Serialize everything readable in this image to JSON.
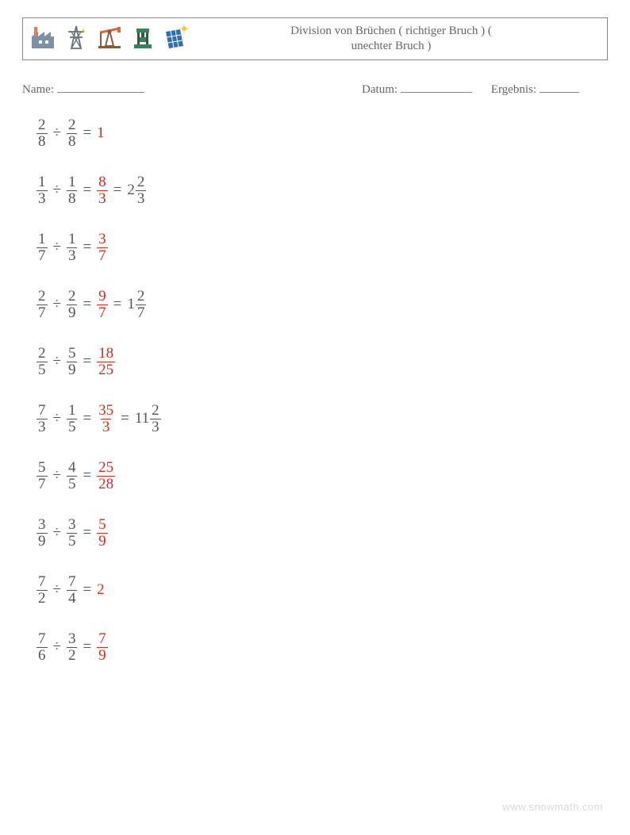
{
  "header": {
    "title_line1": "Division von Brüchen ( richtiger Bruch ) (",
    "title_line2": "unechter Bruch )"
  },
  "meta": {
    "name_label": "Name:",
    "date_label": "Datum:",
    "result_label": "Ergebnis:"
  },
  "colors": {
    "text": "#555555",
    "answer": "#d62c1a",
    "border": "#888888",
    "watermark": "#d9d9d9",
    "background": "#ffffff"
  },
  "font": {
    "family": "Georgia, Times New Roman, serif",
    "equation_size_pt": 14,
    "title_size_pt": 11
  },
  "icons": [
    {
      "name": "factory-icon",
      "primary": "#7a91a6",
      "accent": "#e07b4f"
    },
    {
      "name": "power-tower-icon",
      "primary": "#69707a",
      "accent": "#f2c84b"
    },
    {
      "name": "oil-pump-icon",
      "primary": "#8b5a3c",
      "accent": "#d46a3b"
    },
    {
      "name": "press-machine-icon",
      "primary": "#3c7f5c",
      "accent": "#2f5b45"
    },
    {
      "name": "solar-panel-icon",
      "primary": "#2f6fb3",
      "accent": "#f2c84b"
    }
  ],
  "problems": [
    {
      "a_num": "2",
      "a_den": "8",
      "b_num": "2",
      "b_den": "8",
      "ans_whole": "1"
    },
    {
      "a_num": "1",
      "a_den": "3",
      "b_num": "1",
      "b_den": "8",
      "ans_num": "8",
      "ans_den": "3",
      "mix_whole": "2",
      "mix_num": "2",
      "mix_den": "3"
    },
    {
      "a_num": "1",
      "a_den": "7",
      "b_num": "1",
      "b_den": "3",
      "ans_num": "3",
      "ans_den": "7"
    },
    {
      "a_num": "2",
      "a_den": "7",
      "b_num": "2",
      "b_den": "9",
      "ans_num": "9",
      "ans_den": "7",
      "mix_whole": "1",
      "mix_num": "2",
      "mix_den": "7"
    },
    {
      "a_num": "2",
      "a_den": "5",
      "b_num": "5",
      "b_den": "9",
      "ans_num": "18",
      "ans_den": "25"
    },
    {
      "a_num": "7",
      "a_den": "3",
      "b_num": "1",
      "b_den": "5",
      "ans_num": "35",
      "ans_den": "3",
      "mix_whole": "11",
      "mix_num": "2",
      "mix_den": "3"
    },
    {
      "a_num": "5",
      "a_den": "7",
      "b_num": "4",
      "b_den": "5",
      "ans_num": "25",
      "ans_den": "28"
    },
    {
      "a_num": "3",
      "a_den": "9",
      "b_num": "3",
      "b_den": "5",
      "ans_num": "5",
      "ans_den": "9"
    },
    {
      "a_num": "7",
      "a_den": "2",
      "b_num": "7",
      "b_den": "4",
      "ans_whole": "2"
    },
    {
      "a_num": "7",
      "a_den": "6",
      "b_num": "3",
      "b_den": "2",
      "ans_num": "7",
      "ans_den": "9"
    }
  ],
  "watermark": "www.snowmath.com"
}
